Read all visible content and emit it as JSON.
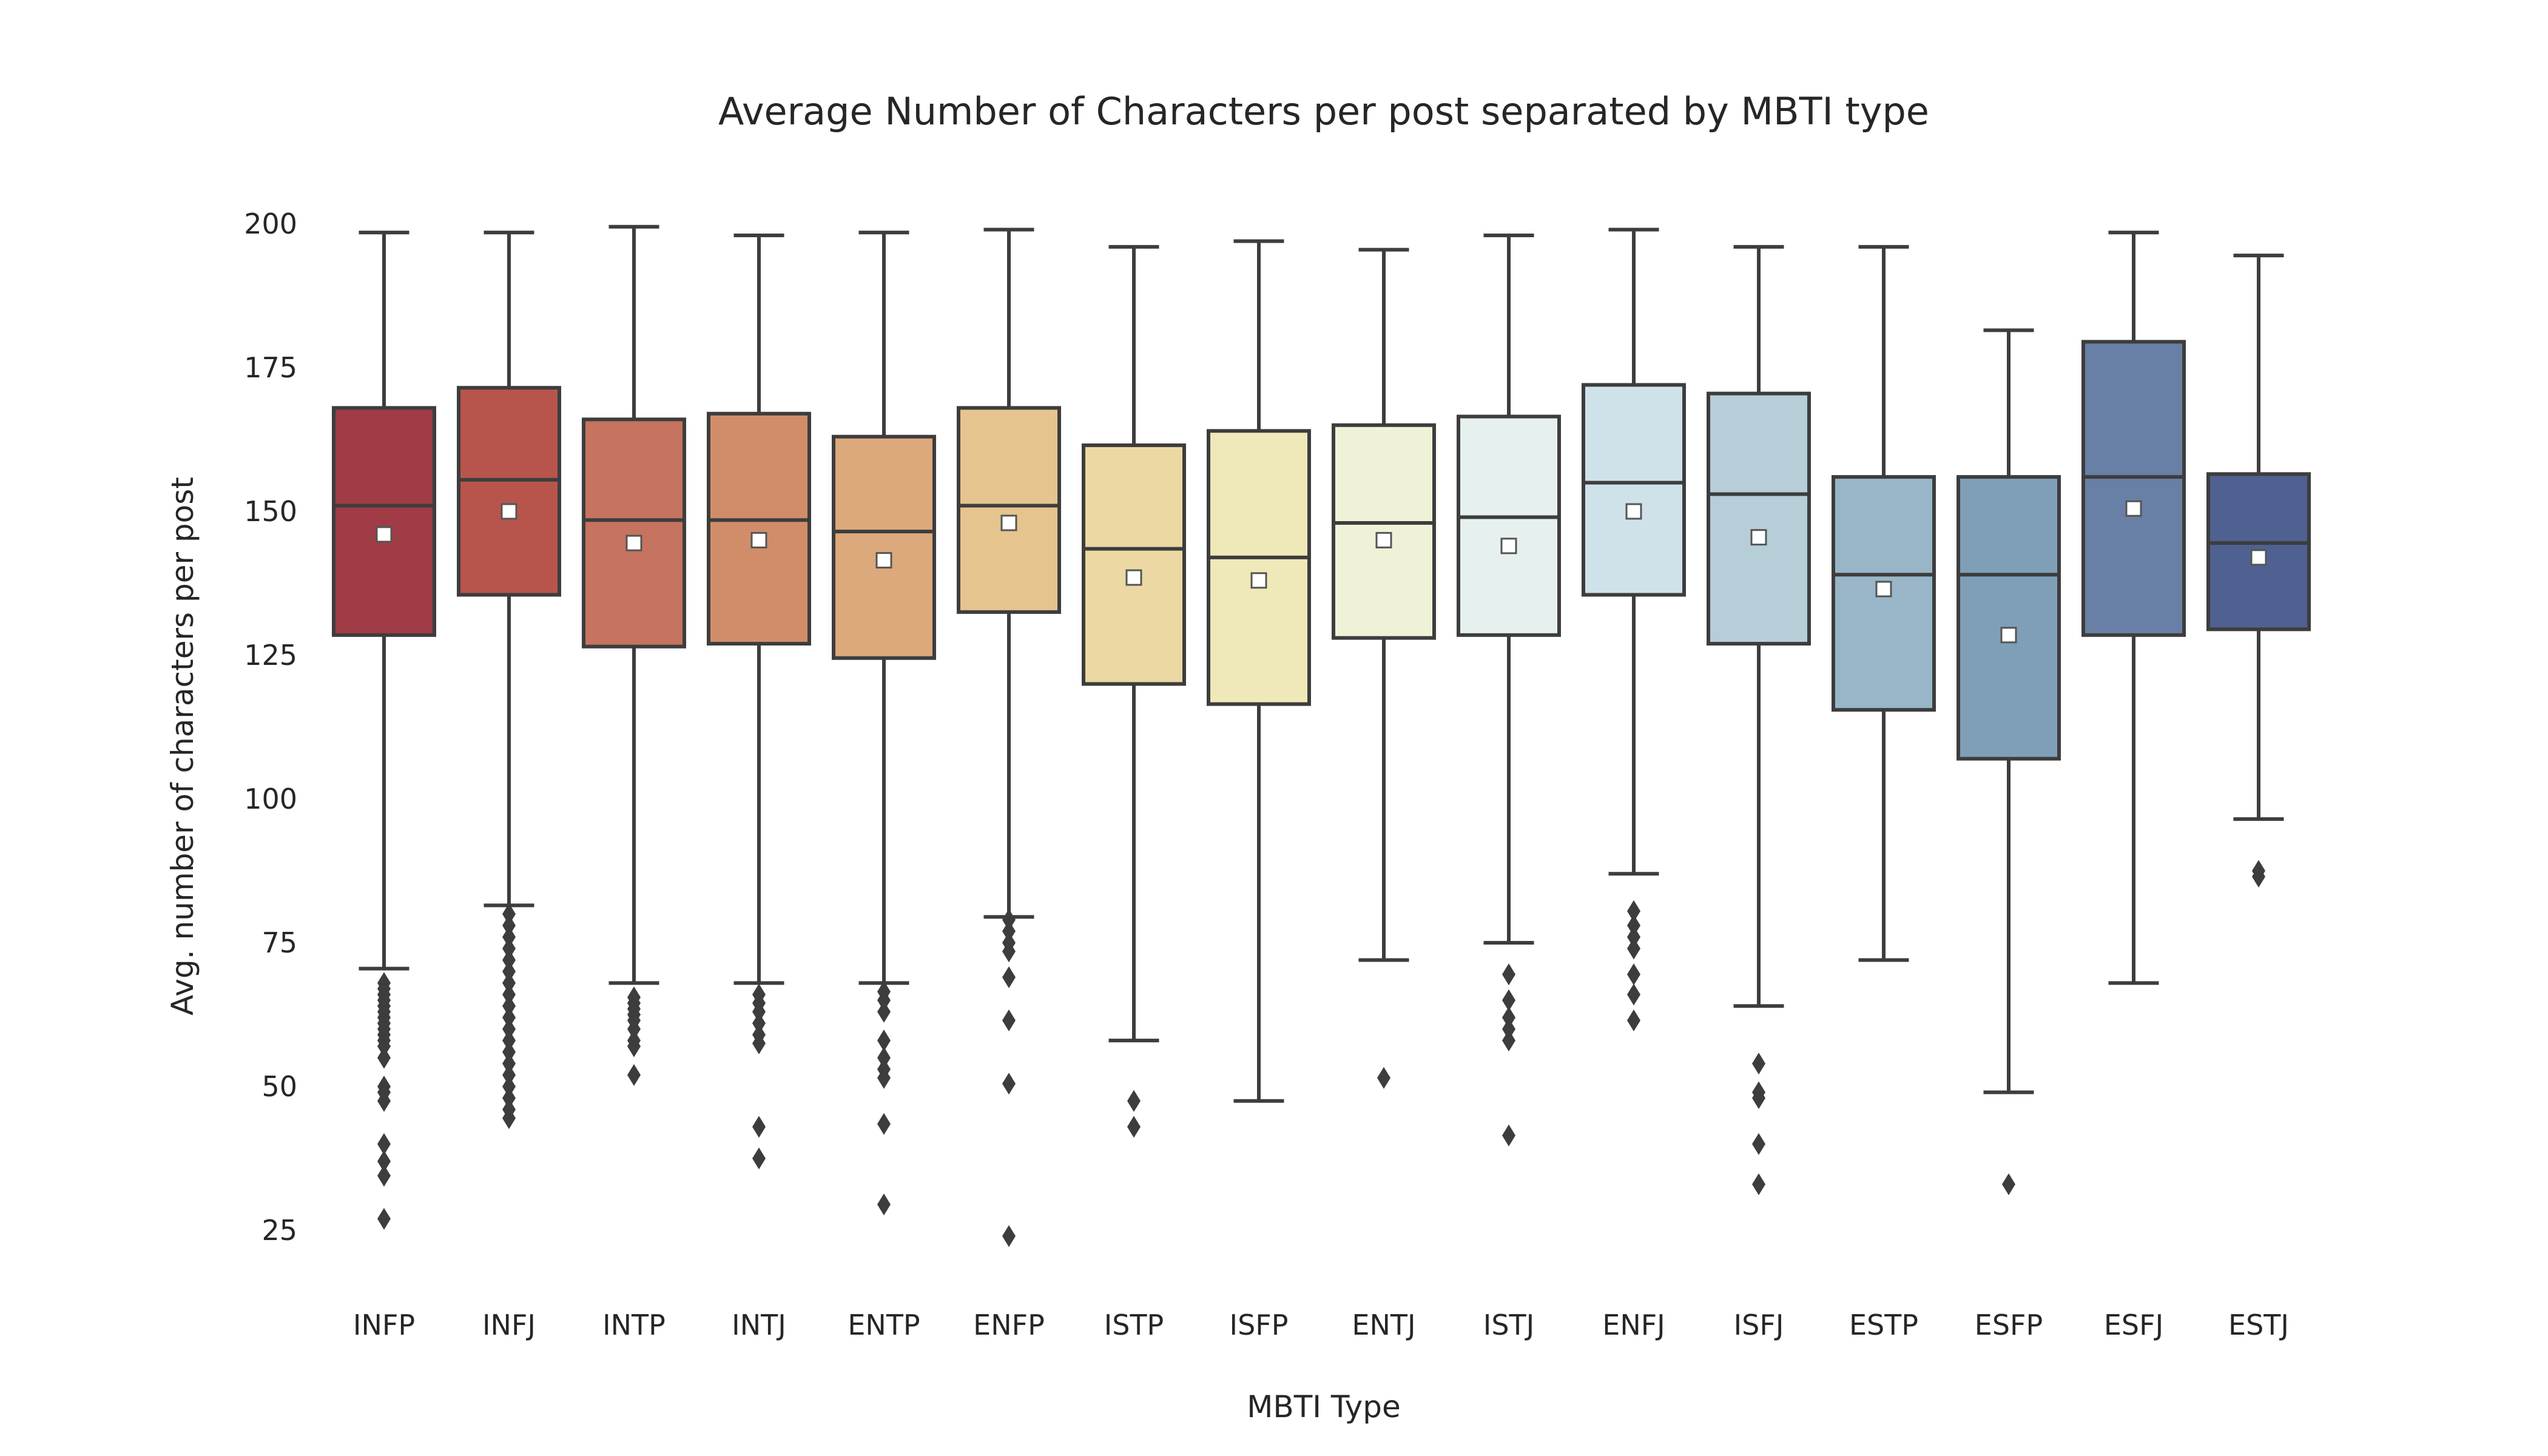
{
  "chart_data": {
    "type": "box",
    "title": "Average Number of Characters per post separated by MBTI type",
    "xlabel": "MBTI Type",
    "ylabel": "Avg. number of characters per post",
    "ylim": [
      15,
      205
    ],
    "yticks": [
      25,
      50,
      75,
      100,
      125,
      150,
      175,
      200
    ],
    "grid": false,
    "legend": "none",
    "categories": [
      "INFP",
      "INFJ",
      "INTP",
      "INTJ",
      "ENTP",
      "ENFP",
      "ISTP",
      "ISFP",
      "ENTJ",
      "ISTJ",
      "ENFJ",
      "ISFJ",
      "ESTP",
      "ESFP",
      "ESFJ",
      "ESTJ"
    ],
    "colors": [
      "#a03c45",
      "#b7554c",
      "#c6735f",
      "#d18d69",
      "#dba97b",
      "#e5c48e",
      "#ebd8a2",
      "#efe8b8",
      "#eff2d6",
      "#e6f0ef",
      "#d0e2e9",
      "#b5ced8",
      "#98b6c8",
      "#7f9fb8",
      "#6880a5",
      "#4f6191"
    ],
    "series": [
      {
        "category": "INFP",
        "whislo": 70.5,
        "q1": 128.5,
        "median": 151,
        "q3": 168,
        "whishi": 198.5,
        "mean": 146,
        "fliers": [
          68,
          67,
          66,
          65,
          64,
          63,
          62,
          61,
          60,
          59,
          58,
          57,
          55,
          50,
          49,
          47.5,
          40,
          37,
          34.5,
          27
        ]
      },
      {
        "category": "INFJ",
        "whislo": 81.5,
        "q1": 135.5,
        "median": 155.5,
        "q3": 171.5,
        "whishi": 198.5,
        "mean": 150,
        "fliers": [
          80,
          78,
          76,
          74,
          72,
          70,
          68,
          66,
          64,
          62,
          60,
          58,
          56,
          54,
          52,
          50,
          48,
          46,
          44.5
        ]
      },
      {
        "category": "INTP",
        "whislo": 68,
        "q1": 126.5,
        "median": 148.5,
        "q3": 166,
        "whishi": 199.5,
        "mean": 144.5,
        "fliers": [
          65.5,
          64.5,
          63.5,
          62.5,
          61.5,
          60,
          58,
          57,
          52
        ]
      },
      {
        "category": "INTJ",
        "whislo": 68,
        "q1": 127,
        "median": 148.5,
        "q3": 167,
        "whishi": 198,
        "mean": 145,
        "fliers": [
          66,
          64.5,
          63,
          61,
          59,
          57.5,
          43,
          37.5
        ]
      },
      {
        "category": "ENTP",
        "whislo": 68,
        "q1": 124.5,
        "median": 146.5,
        "q3": 163,
        "whishi": 198.5,
        "mean": 141.5,
        "fliers": [
          66.5,
          65,
          63,
          58,
          55,
          53,
          51.5,
          43.5,
          29.5
        ]
      },
      {
        "category": "ENFP",
        "whislo": 79.5,
        "q1": 132.5,
        "median": 151,
        "q3": 168,
        "whishi": 199,
        "mean": 148,
        "fliers": [
          79,
          77,
          75,
          73.5,
          69,
          61.5,
          50.5,
          24
        ]
      },
      {
        "category": "ISTP",
        "whislo": 58,
        "q1": 120,
        "median": 143.5,
        "q3": 161.5,
        "whishi": 196,
        "mean": 138.5,
        "fliers": [
          47.5,
          43
        ]
      },
      {
        "category": "ISFP",
        "whislo": 47.5,
        "q1": 116.5,
        "median": 142,
        "q3": 164,
        "whishi": 197,
        "mean": 138,
        "fliers": []
      },
      {
        "category": "ENTJ",
        "whislo": 72,
        "q1": 128,
        "median": 148,
        "q3": 165,
        "whishi": 195.5,
        "mean": 145,
        "fliers": [
          51.5
        ]
      },
      {
        "category": "ISTJ",
        "whislo": 75,
        "q1": 128.5,
        "median": 149,
        "q3": 166.5,
        "whishi": 198,
        "mean": 144,
        "fliers": [
          69.5,
          65,
          62,
          60,
          58,
          41.5
        ]
      },
      {
        "category": "ENFJ",
        "whislo": 87,
        "q1": 135.5,
        "median": 155,
        "q3": 172,
        "whishi": 199,
        "mean": 150,
        "fliers": [
          80.5,
          78,
          76,
          74,
          69.5,
          66,
          61.5
        ]
      },
      {
        "category": "ISFJ",
        "whislo": 64,
        "q1": 127,
        "median": 153,
        "q3": 170.5,
        "whishi": 196,
        "mean": 145.5,
        "fliers": [
          54,
          49,
          48,
          40,
          33
        ]
      },
      {
        "category": "ESTP",
        "whislo": 72,
        "q1": 115.5,
        "median": 139,
        "q3": 156,
        "whishi": 196,
        "mean": 136.5,
        "fliers": []
      },
      {
        "category": "ESFP",
        "whislo": 49,
        "q1": 107,
        "median": 139,
        "q3": 156,
        "whishi": 181.5,
        "mean": 128.5,
        "fliers": [
          33
        ]
      },
      {
        "category": "ESFJ",
        "whislo": 68,
        "q1": 128.5,
        "median": 156,
        "q3": 179.5,
        "whishi": 198.5,
        "mean": 150.5,
        "fliers": []
      },
      {
        "category": "ESTJ",
        "whislo": 96.5,
        "q1": 129.5,
        "median": 144.5,
        "q3": 156.5,
        "whishi": 194.5,
        "mean": 142,
        "fliers": [
          87.5,
          86.5
        ]
      }
    ]
  }
}
